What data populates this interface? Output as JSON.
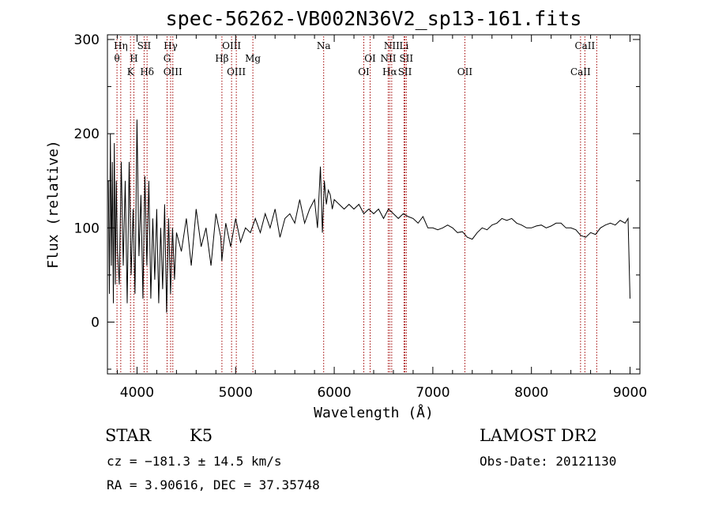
{
  "chart_data": {
    "type": "line",
    "title": "spec-56262-VB002N36V2_sp13-161.fits",
    "xlabel": "Wavelength (Å)",
    "ylabel": "Flux (relative)",
    "xlim": [
      3700,
      9100
    ],
    "ylim": [
      -55,
      305
    ],
    "xticks": [
      4000,
      5000,
      6000,
      7000,
      8000,
      9000
    ],
    "yticks": [
      0,
      100,
      200,
      300
    ],
    "grid": false,
    "line_color": "#000000",
    "marker_color": "#a00000",
    "series": [
      {
        "x": [
          3710,
          3720,
          3730,
          3740,
          3750,
          3760,
          3770,
          3780,
          3790,
          3800,
          3820,
          3840,
          3860,
          3880,
          3900,
          3920,
          3940,
          3960,
          3980,
          4000,
          4020,
          4040,
          4060,
          4080,
          4100,
          4120,
          4140,
          4160,
          4180,
          4200,
          4220,
          4240,
          4260,
          4280,
          4300,
          4320,
          4340,
          4360,
          4380,
          4400,
          4450,
          4500,
          4550,
          4600,
          4650,
          4700,
          4750,
          4800,
          4850,
          4860,
          4900,
          4950,
          5000,
          5050,
          5100,
          5150,
          5200,
          5250,
          5300,
          5350,
          5400,
          5450,
          5500,
          5550,
          5600,
          5650,
          5700,
          5750,
          5800,
          5830,
          5860,
          5880,
          5900,
          5920,
          5940,
          5960,
          5980,
          6000,
          6050,
          6100,
          6150,
          6200,
          6250,
          6300,
          6350,
          6400,
          6450,
          6500,
          6550,
          6600,
          6650,
          6700,
          6750,
          6800,
          6850,
          6900,
          6950,
          7000,
          7050,
          7100,
          7150,
          7200,
          7250,
          7300,
          7350,
          7400,
          7450,
          7500,
          7550,
          7600,
          7650,
          7700,
          7750,
          7800,
          7850,
          7900,
          7950,
          8000,
          8050,
          8100,
          8150,
          8200,
          8250,
          8300,
          8350,
          8400,
          8450,
          8500,
          8550,
          8600,
          8650,
          8700,
          8750,
          8800,
          8850,
          8900,
          8950,
          8980,
          9000
        ],
        "y": [
          150,
          30,
          200,
          60,
          170,
          20,
          190,
          40,
          150,
          80,
          40,
          170,
          60,
          150,
          20,
          170,
          50,
          120,
          30,
          215,
          70,
          135,
          25,
          155,
          60,
          150,
          25,
          110,
          45,
          120,
          20,
          100,
          35,
          125,
          10,
          110,
          30,
          100,
          45,
          95,
          75,
          110,
          60,
          120,
          80,
          100,
          60,
          115,
          90,
          65,
          105,
          80,
          110,
          85,
          100,
          95,
          110,
          95,
          115,
          100,
          120,
          90,
          110,
          115,
          105,
          130,
          105,
          120,
          130,
          100,
          165,
          95,
          150,
          125,
          140,
          135,
          120,
          130,
          125,
          120,
          125,
          120,
          125,
          115,
          120,
          115,
          120,
          110,
          120,
          115,
          110,
          115,
          112,
          110,
          105,
          112,
          100,
          100,
          98,
          100,
          103,
          100,
          95,
          96,
          90,
          88,
          95,
          100,
          98,
          103,
          105,
          110,
          108,
          110,
          105,
          103,
          100,
          100,
          102,
          103,
          100,
          102,
          105,
          105,
          100,
          100,
          98,
          92,
          90,
          95,
          93,
          100,
          103,
          105,
          103,
          108,
          105,
          110,
          25
        ]
      }
    ],
    "lines": [
      {
        "label": "Hη",
        "wl": 3835,
        "row": 1
      },
      {
        "label": "θ",
        "wl": 3797,
        "row": 2
      },
      {
        "label": "H",
        "wl": 3968,
        "row": 2
      },
      {
        "label": "K",
        "wl": 3934,
        "row": 3
      },
      {
        "label": "SII",
        "wl": 4072,
        "row": 1
      },
      {
        "label": "Hδ",
        "wl": 4102,
        "row": 3
      },
      {
        "label": "Hγ",
        "wl": 4341,
        "row": 1
      },
      {
        "label": "G",
        "wl": 4305,
        "row": 2
      },
      {
        "label": "OIII",
        "wl": 4363,
        "row": 3
      },
      {
        "label": "OIII",
        "wl": 4959,
        "row": 1
      },
      {
        "label": "Hβ",
        "wl": 4861,
        "row": 2
      },
      {
        "label": "Mg",
        "wl": 5175,
        "row": 2
      },
      {
        "label": "OIII",
        "wl": 5007,
        "row": 3
      },
      {
        "label": "Na",
        "wl": 5893,
        "row": 1
      },
      {
        "label": "OI",
        "wl": 6364,
        "row": 2
      },
      {
        "label": "OI",
        "wl": 6300,
        "row": 3
      },
      {
        "label": "NII",
        "wl": 6583,
        "row": 1
      },
      {
        "label": "Li",
        "wl": 6708,
        "row": 1
      },
      {
        "label": "NII",
        "wl": 6548,
        "row": 2
      },
      {
        "label": "SII",
        "wl": 6731,
        "row": 2
      },
      {
        "label": "Hα",
        "wl": 6563,
        "row": 3
      },
      {
        "label": "SII",
        "wl": 6717,
        "row": 3
      },
      {
        "label": "OII",
        "wl": 7325,
        "row": 3
      },
      {
        "label": "CaII",
        "wl": 8542,
        "row": 1
      },
      {
        "label": "CaII",
        "wl": 8498,
        "row": 3
      },
      {
        "label": "",
        "wl": 8662,
        "row": 0
      }
    ]
  },
  "info": {
    "class": "STAR",
    "subclass": "K5",
    "survey": "LAMOST DR2",
    "cz": "cz = −181.3 ± 14.5 km/s",
    "obs_date": "Obs-Date: 20121130",
    "coords": "RA =   3.90616, DEC =  37.35748"
  }
}
